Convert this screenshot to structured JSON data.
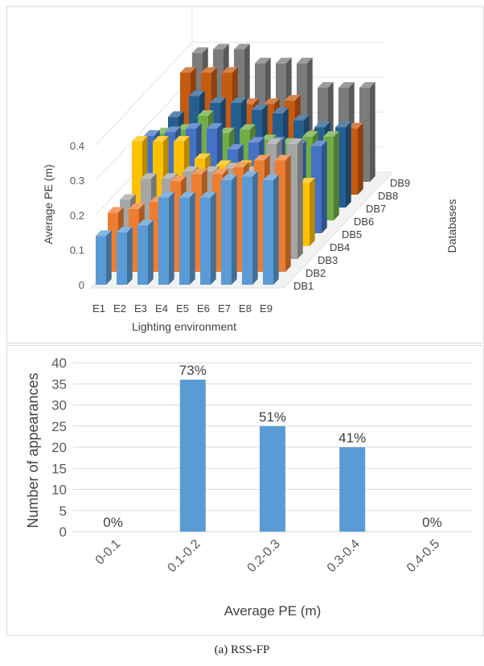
{
  "figure_caption": "(a)  RSS-FP",
  "chart_data": [
    {
      "type": "bar3d",
      "xlabel": "Lighting environment",
      "ylabel": "Average PE (m)",
      "zlabel": "Databases",
      "x_categories": [
        "E1",
        "E2",
        "E3",
        "E4",
        "E5",
        "E6",
        "E7",
        "E8",
        "E9"
      ],
      "databases": [
        "DB1",
        "DB2",
        "DB3",
        "DB4",
        "DB5",
        "DB6",
        "DB7",
        "DB8",
        "DB9"
      ],
      "yticks": [
        "0",
        "0.1",
        "0.2",
        "0.3",
        "0.4"
      ],
      "ylim": [
        0,
        0.5
      ],
      "series_colors": {
        "DB1": "#5b9bd5",
        "DB2": "#ed7d31",
        "DB3": "#a5a5a5",
        "DB4": "#ffc000",
        "DB5": "#4472c4",
        "DB6": "#70ad47",
        "DB7": "#255e91",
        "DB8": "#c55a11",
        "DB9": "#7b7b7b"
      },
      "values": {
        "DB1": [
          0.14,
          0.15,
          0.17,
          0.25,
          0.25,
          0.25,
          0.3,
          0.31,
          0.3
        ],
        "DB2": [
          0.17,
          0.18,
          0.2,
          0.26,
          0.28,
          0.28,
          0.3,
          0.32,
          0.32
        ],
        "DB3": [
          0.17,
          0.23,
          0.23,
          0.25,
          0.25,
          0.26,
          0.25,
          0.33,
          0.33
        ],
        "DB4": [
          0.3,
          0.3,
          0.3,
          0.25,
          0.23,
          0.23,
          0.21,
          0.18,
          0.18
        ],
        "DB5": [
          0.28,
          0.29,
          0.3,
          0.3,
          0.24,
          0.26,
          0.26,
          0.25,
          0.25
        ],
        "DB6": [
          0.25,
          0.26,
          0.3,
          0.25,
          0.26,
          0.23,
          0.22,
          0.24,
          0.24
        ],
        "DB7": [
          0.26,
          0.32,
          0.3,
          0.3,
          0.28,
          0.27,
          0.25,
          0.23,
          0.23
        ],
        "DB8": [
          0.35,
          0.35,
          0.35,
          0.26,
          0.26,
          0.27,
          0.17,
          0.16,
          0.19
        ],
        "DB9": [
          0.37,
          0.38,
          0.38,
          0.34,
          0.34,
          0.34,
          0.27,
          0.27,
          0.27
        ]
      }
    },
    {
      "type": "bar",
      "xlabel": "Average PE (m)",
      "ylabel": "Number of appearances",
      "categories": [
        "0-0.1",
        "0.1-0.2",
        "0.2-0.3",
        "0.3-0.4",
        "0.4-0.5"
      ],
      "values": [
        0,
        36,
        25,
        20,
        0
      ],
      "data_labels": [
        "0%",
        "73%",
        "51%",
        "41%",
        "0%"
      ],
      "yticks": [
        "0",
        "5",
        "10",
        "15",
        "20",
        "25",
        "30",
        "35",
        "40"
      ],
      "ylim": [
        0,
        40
      ],
      "grid": true,
      "bar_color": "#5b9bd5"
    }
  ]
}
